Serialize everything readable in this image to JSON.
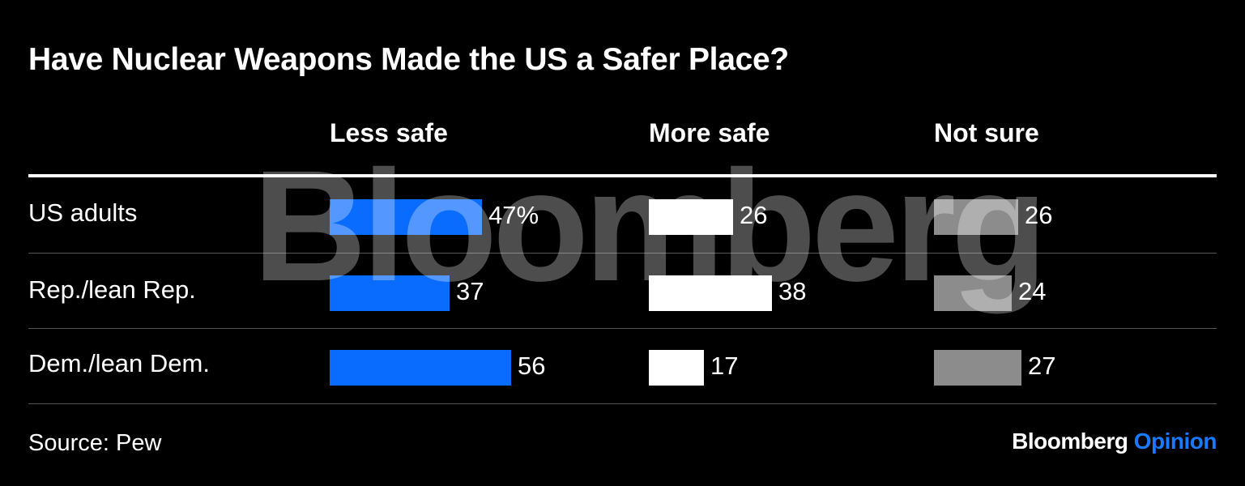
{
  "chart_data": {
    "type": "bar",
    "orientation": "horizontal",
    "title": "Have Nuclear Weapons Made the US a Safer Place?",
    "categories": [
      "US adults",
      "Rep./lean Rep.",
      "Dem./lean Dem."
    ],
    "series": [
      {
        "name": "Less safe",
        "values": [
          47,
          37,
          56
        ],
        "labels": [
          "47%",
          "37",
          "56"
        ],
        "color": "#0a6cff"
      },
      {
        "name": "More safe",
        "values": [
          26,
          38,
          17
        ],
        "labels": [
          "26",
          "38",
          "17"
        ],
        "color": "#ffffff"
      },
      {
        "name": "Not sure",
        "values": [
          26,
          24,
          27
        ],
        "labels": [
          "26",
          "24",
          "27"
        ],
        "color": "#8c8c8c"
      }
    ],
    "unit": "%",
    "legend": "column headers",
    "grid": false
  },
  "watermark": "Bloomberg",
  "footer": {
    "source": "Source: Pew",
    "brand_primary": "Bloomberg",
    "brand_secondary": "Opinion",
    "brand_secondary_color": "#1a7aff"
  }
}
